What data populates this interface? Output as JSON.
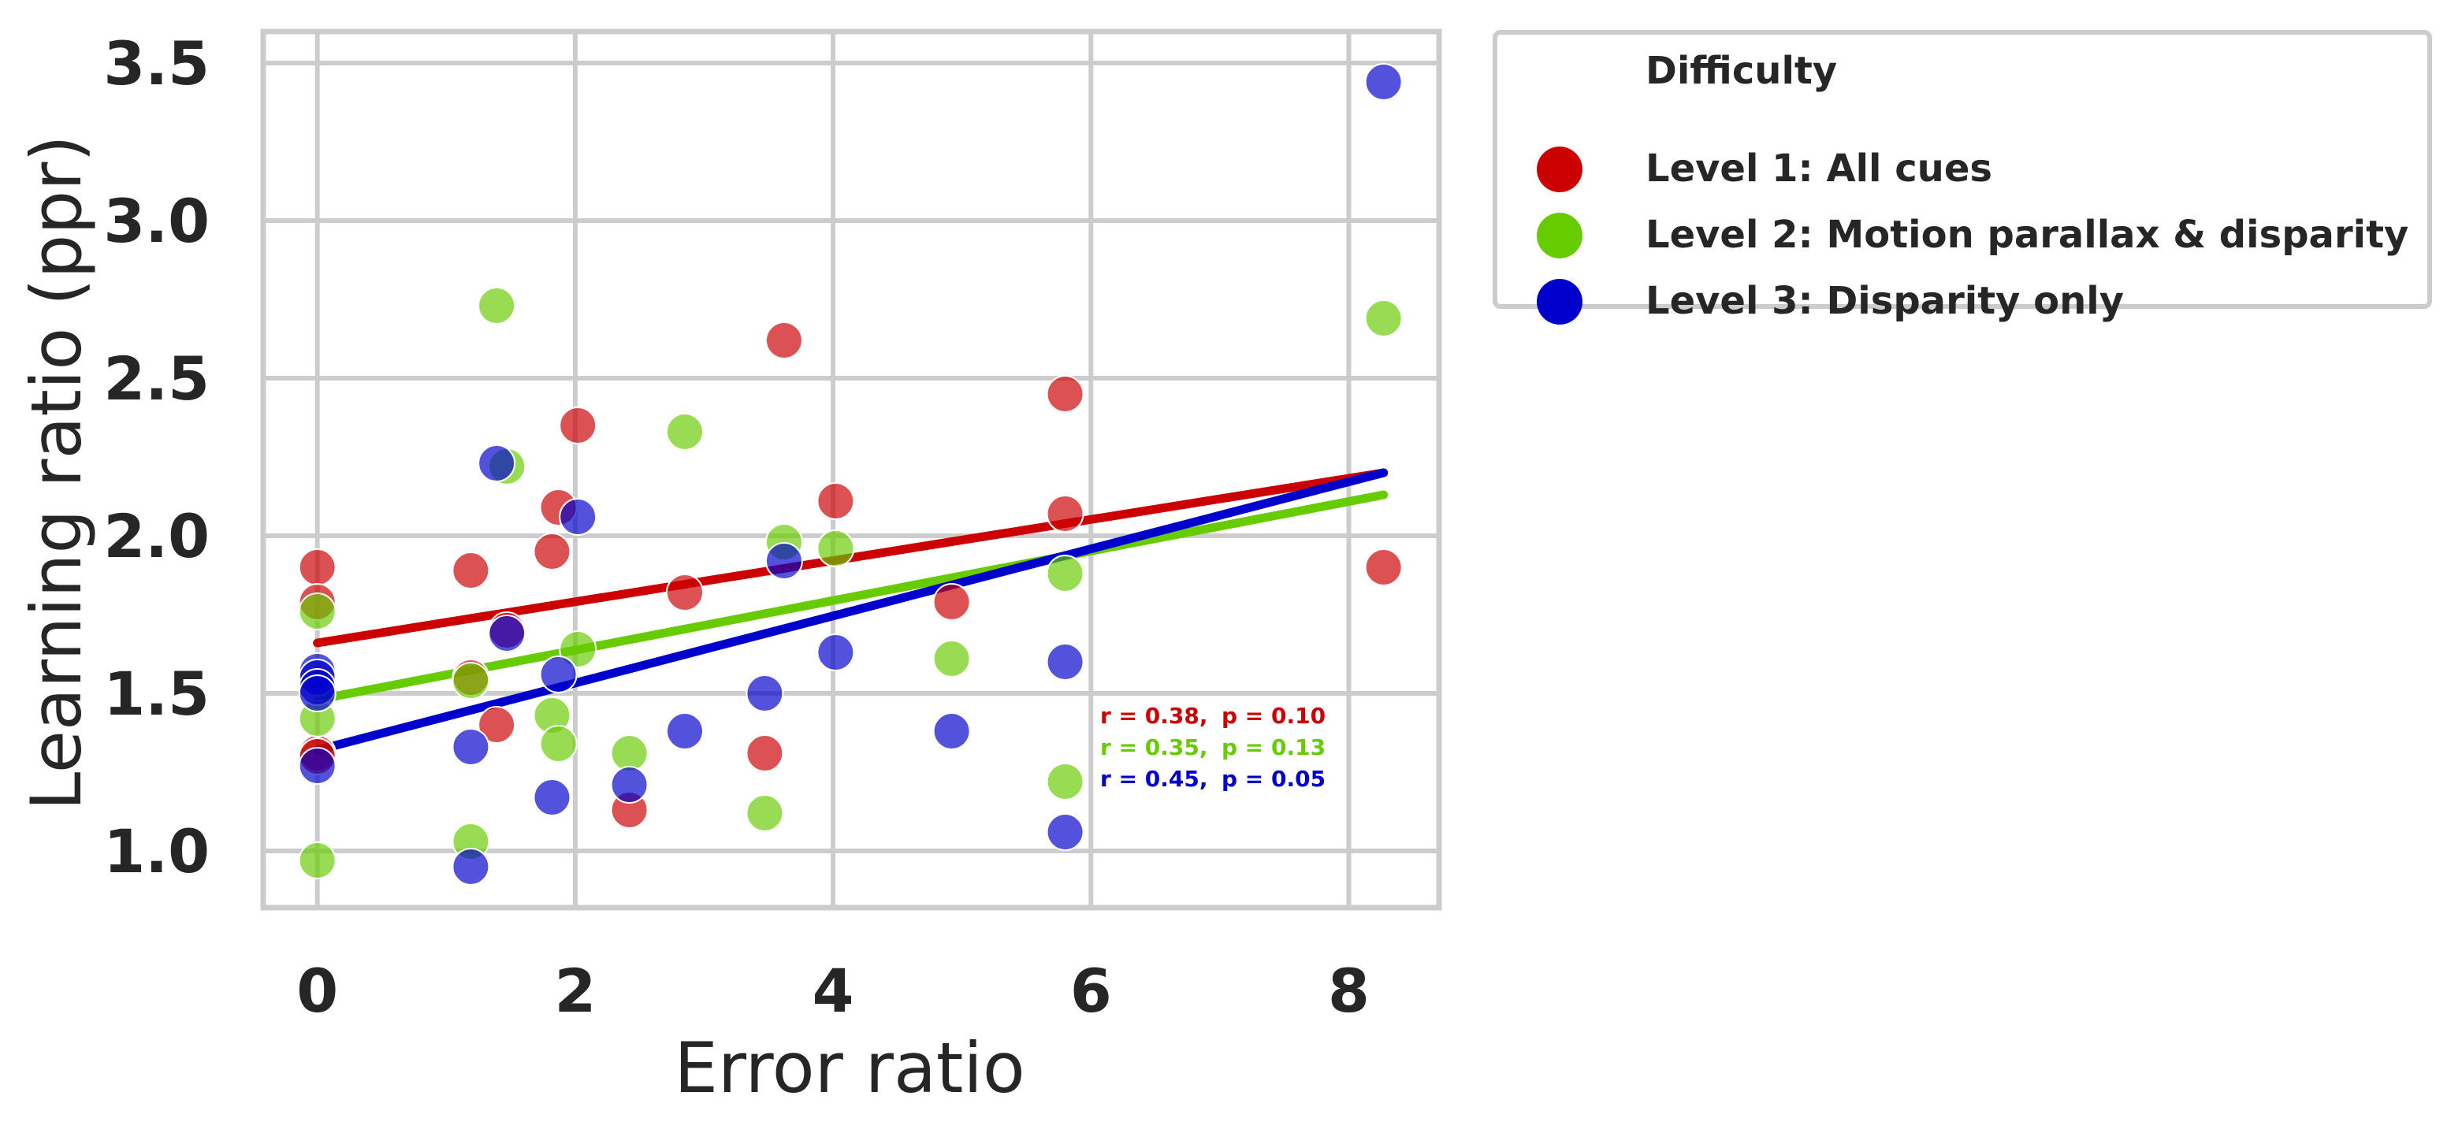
{
  "chart_data": {
    "type": "scatter",
    "xlabel": "Error ratio",
    "ylabel": "Learning ratio (ppr)",
    "xlim": [
      -0.42,
      8.7
    ],
    "ylim": [
      0.82,
      3.6
    ],
    "xticks": [
      "0",
      "2",
      "4",
      "6",
      "8"
    ],
    "xtick_values": [
      0,
      2,
      4,
      6,
      8
    ],
    "yticks": [
      "1.0",
      "1.5",
      "2.0",
      "2.5",
      "3.0",
      "3.5"
    ],
    "ytick_values": [
      1.0,
      1.5,
      2.0,
      2.5,
      3.0,
      3.5
    ],
    "grid": true,
    "legend": {
      "title": "Difficulty",
      "placement": "outside-upper-right"
    },
    "series": [
      {
        "name": "Level 1: All cues",
        "color": "#cc0000",
        "points": [
          [
            0,
            1.9
          ],
          [
            0,
            1.79
          ],
          [
            0,
            1.31
          ],
          [
            0,
            1.3
          ],
          [
            1.19,
            1.89
          ],
          [
            1.19,
            1.55
          ],
          [
            1.39,
            1.4
          ],
          [
            1.47,
            1.7
          ],
          [
            1.82,
            1.95
          ],
          [
            1.87,
            2.09
          ],
          [
            2.02,
            2.35
          ],
          [
            2.42,
            1.13
          ],
          [
            2.85,
            1.82
          ],
          [
            3.47,
            1.31
          ],
          [
            3.62,
            2.62
          ],
          [
            4.02,
            2.11
          ],
          [
            4.92,
            1.79
          ],
          [
            5.8,
            2.45
          ],
          [
            5.8,
            2.07
          ],
          [
            8.27,
            1.9
          ]
        ],
        "fit": {
          "x": [
            0,
            8.27
          ],
          "y": [
            1.66,
            2.2
          ]
        },
        "stats": {
          "r": "r = 0.38,",
          "p": "p = 0.10"
        }
      },
      {
        "name": "Level 2: Motion parallax & disparity",
        "color": "#66cc00",
        "points": [
          [
            0,
            1.76
          ],
          [
            0,
            1.42
          ],
          [
            0,
            0.97
          ],
          [
            1.19,
            1.54
          ],
          [
            1.19,
            1.03
          ],
          [
            1.39,
            2.73
          ],
          [
            1.47,
            2.22
          ],
          [
            1.82,
            1.43
          ],
          [
            1.87,
            1.34
          ],
          [
            2.02,
            1.64
          ],
          [
            2.42,
            1.31
          ],
          [
            2.85,
            2.33
          ],
          [
            3.47,
            1.12
          ],
          [
            3.62,
            1.98
          ],
          [
            4.02,
            1.96
          ],
          [
            4.92,
            1.61
          ],
          [
            5.8,
            1.88
          ],
          [
            5.8,
            1.22
          ],
          [
            8.27,
            2.69
          ]
        ],
        "fit": {
          "x": [
            0,
            8.27
          ],
          "y": [
            1.48,
            2.13
          ]
        },
        "stats": {
          "r": "r = 0.35,",
          "p": "p = 0.13"
        }
      },
      {
        "name": "Level 3: Disparity only",
        "color": "#0000cc",
        "points": [
          [
            0,
            1.57
          ],
          [
            0,
            1.55
          ],
          [
            0,
            1.52
          ],
          [
            0,
            1.5
          ],
          [
            0,
            1.27
          ],
          [
            1.19,
            1.33
          ],
          [
            1.19,
            0.95
          ],
          [
            1.39,
            2.23
          ],
          [
            1.47,
            1.69
          ],
          [
            1.82,
            1.17
          ],
          [
            1.87,
            1.56
          ],
          [
            2.02,
            2.06
          ],
          [
            2.42,
            1.21
          ],
          [
            2.85,
            1.38
          ],
          [
            3.47,
            1.5
          ],
          [
            3.62,
            1.92
          ],
          [
            4.02,
            1.63
          ],
          [
            4.92,
            1.38
          ],
          [
            5.8,
            1.6
          ],
          [
            5.8,
            1.06
          ],
          [
            8.27,
            3.44
          ]
        ],
        "fit": {
          "x": [
            0,
            8.27
          ],
          "y": [
            1.32,
            2.2
          ]
        },
        "stats": {
          "r": "r = 0.45,",
          "p": "p = 0.05"
        }
      }
    ]
  }
}
